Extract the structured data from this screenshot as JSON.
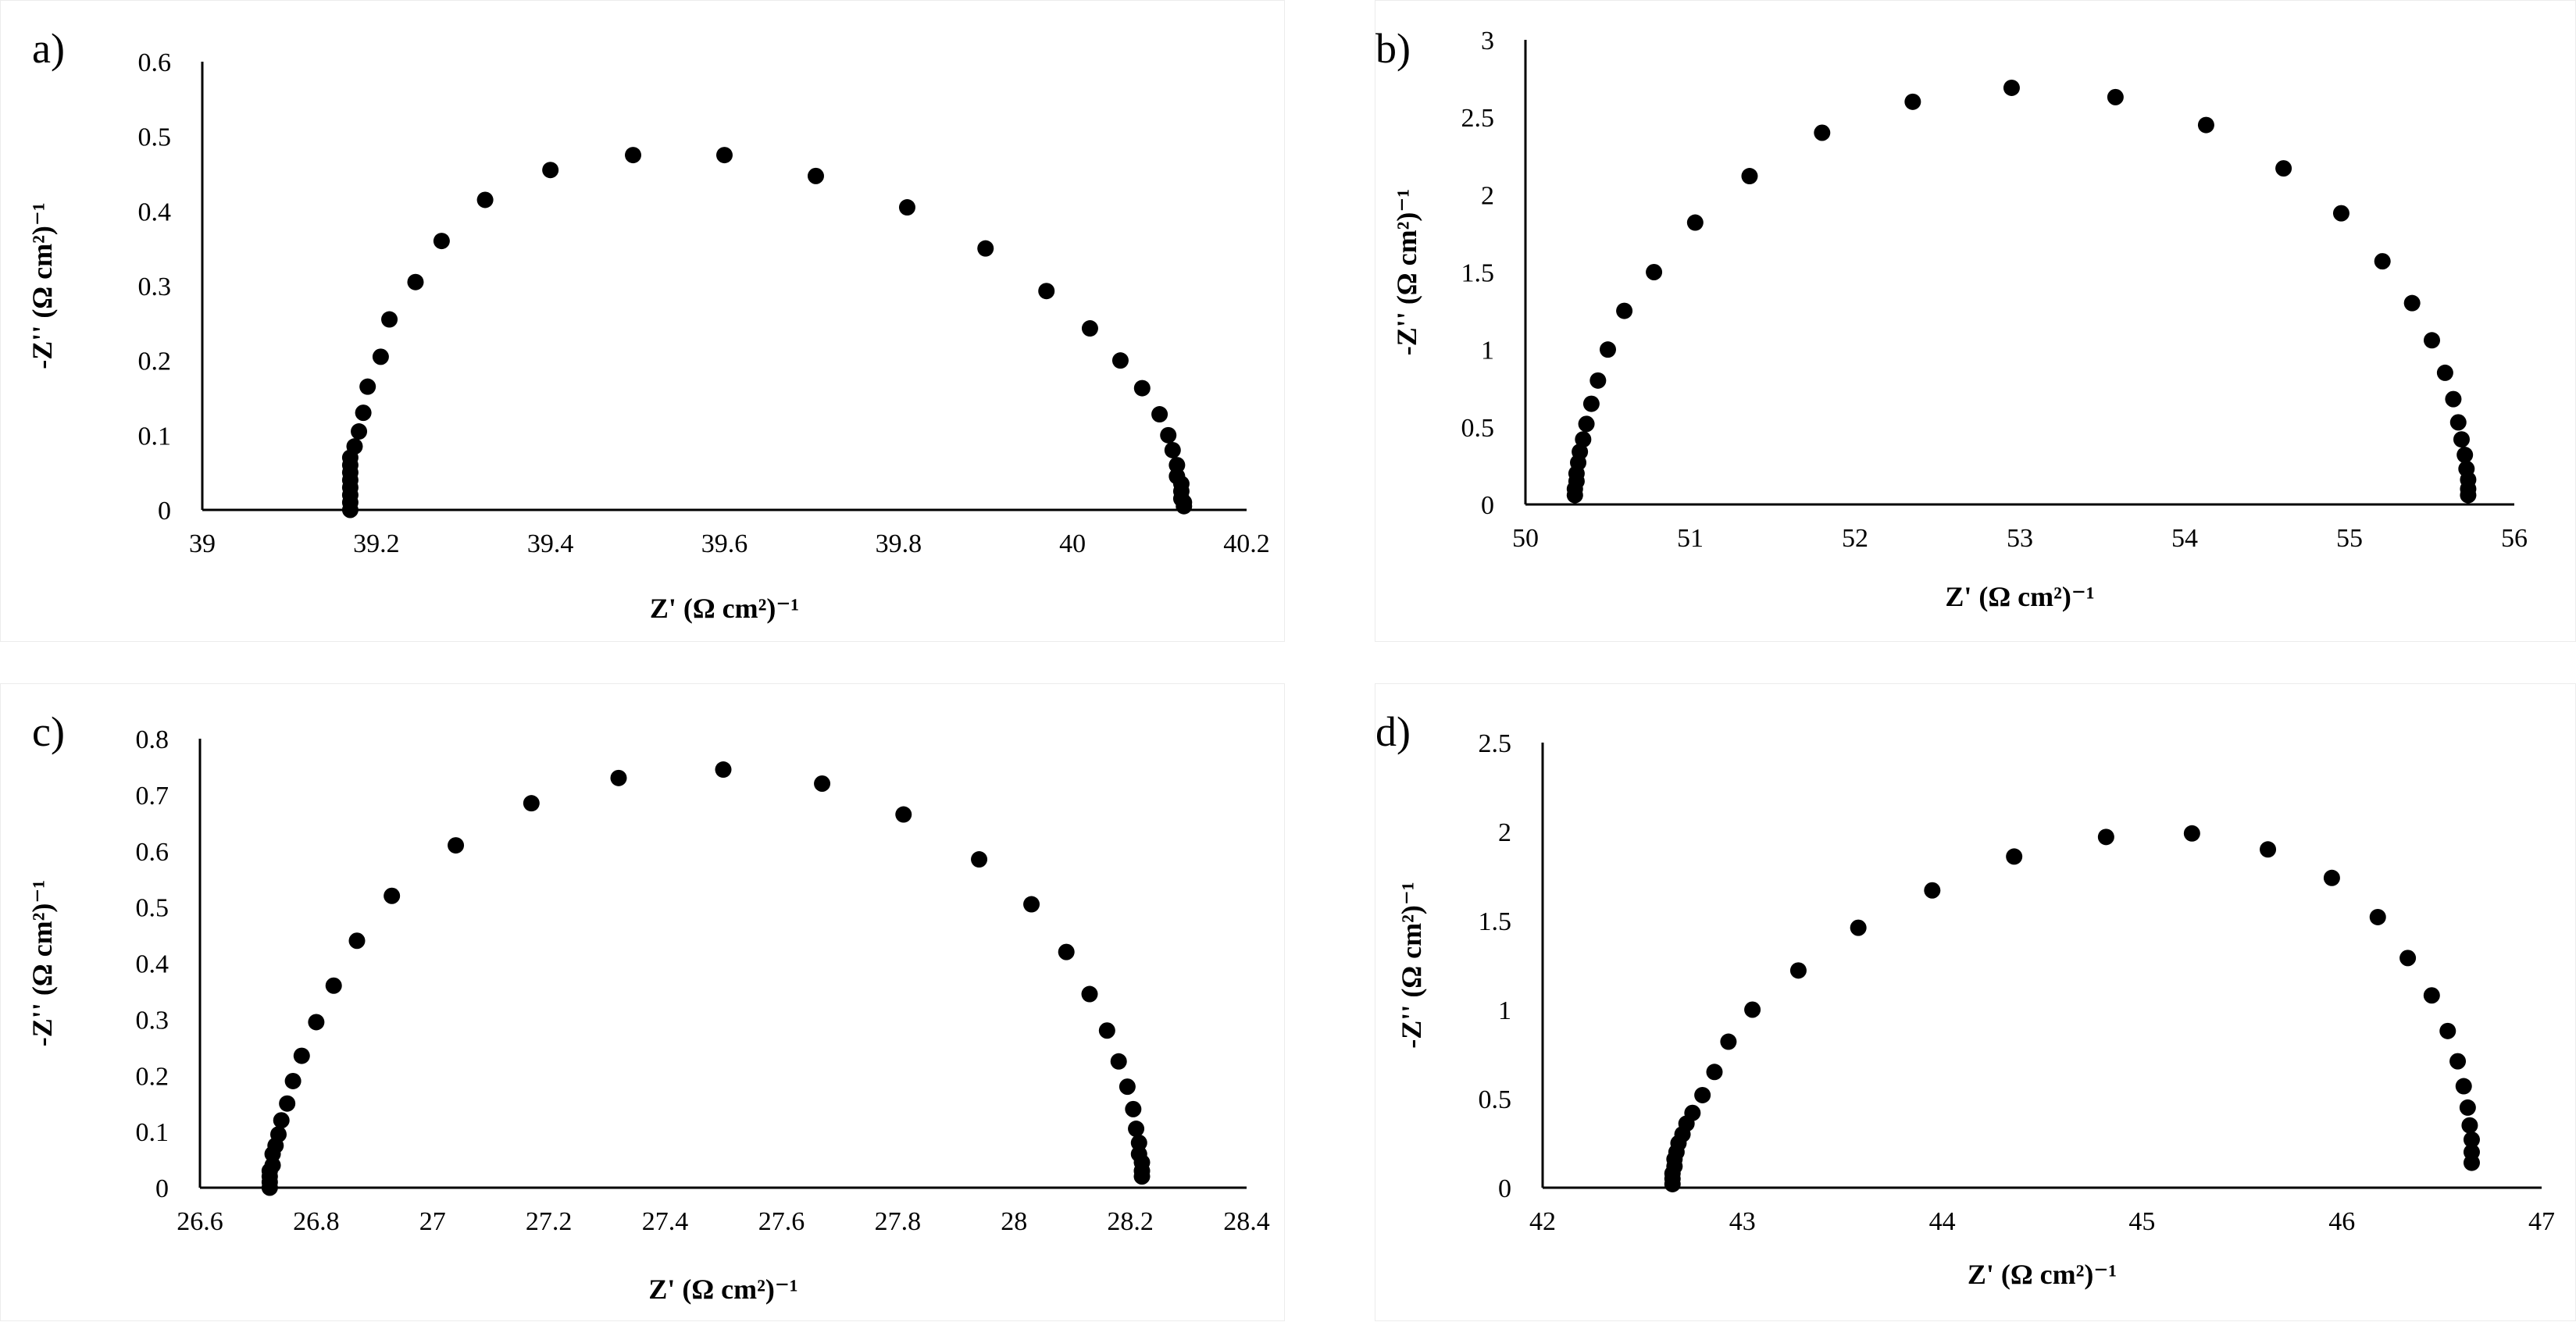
{
  "chart_data": [
    {
      "type": "scatter",
      "panel": "a)",
      "xlabel": "Z' (Ω cm²)⁻¹",
      "ylabel": "-Z'' (Ω cm²)⁻¹",
      "xlim": [
        39,
        40.2
      ],
      "ylim": [
        0,
        0.6
      ],
      "xticks": [
        "39",
        "39.2",
        "39.4",
        "39.6",
        "39.8",
        "40",
        "40.2"
      ],
      "yticks": [
        "0",
        "0.1",
        "0.2",
        "0.3",
        "0.4",
        "0.5",
        "0.6"
      ],
      "grid": false,
      "marker_color": "#000000",
      "series": [
        {
          "x": [
            39.17,
            39.17,
            39.17,
            39.17,
            39.17,
            39.17,
            39.17,
            39.17,
            39.175,
            39.18,
            39.185,
            39.19,
            39.205,
            39.215,
            39.245,
            39.275,
            39.325,
            39.4,
            39.495,
            39.6,
            39.705,
            39.81,
            39.9,
            39.97,
            40.02,
            40.055,
            40.08,
            40.1,
            40.11,
            40.115,
            40.12,
            40.12,
            40.125,
            40.125,
            40.125,
            40.128,
            40.128
          ],
          "y": [
            0.0,
            0.01,
            0.02,
            0.03,
            0.04,
            0.05,
            0.06,
            0.07,
            0.085,
            0.105,
            0.13,
            0.165,
            0.205,
            0.255,
            0.305,
            0.36,
            0.415,
            0.455,
            0.475,
            0.475,
            0.447,
            0.405,
            0.35,
            0.293,
            0.243,
            0.2,
            0.163,
            0.128,
            0.1,
            0.08,
            0.06,
            0.045,
            0.035,
            0.025,
            0.015,
            0.01,
            0.005
          ]
        }
      ]
    },
    {
      "type": "scatter",
      "panel": "b)",
      "xlabel": "Z' (Ω cm²)⁻¹",
      "ylabel": "-Z'' (Ω cm²)⁻¹",
      "xlim": [
        50,
        56
      ],
      "ylim": [
        0,
        3
      ],
      "xticks": [
        "50",
        "51",
        "52",
        "53",
        "54",
        "55",
        "56"
      ],
      "yticks": [
        "0",
        "0.5",
        "1",
        "1.5",
        "2",
        "2.5",
        "3"
      ],
      "grid": false,
      "marker_color": "#000000",
      "series": [
        {
          "x": [
            50.3,
            50.3,
            50.31,
            50.31,
            50.32,
            50.33,
            50.35,
            50.37,
            50.4,
            50.44,
            50.5,
            50.6,
            50.78,
            51.03,
            51.36,
            51.8,
            52.35,
            52.95,
            53.58,
            54.13,
            54.6,
            54.95,
            55.2,
            55.38,
            55.5,
            55.58,
            55.63,
            55.66,
            55.68,
            55.7,
            55.71,
            55.72,
            55.72,
            55.72
          ],
          "y": [
            0.06,
            0.1,
            0.15,
            0.2,
            0.27,
            0.34,
            0.42,
            0.52,
            0.65,
            0.8,
            1.0,
            1.25,
            1.5,
            1.82,
            2.12,
            2.4,
            2.6,
            2.69,
            2.63,
            2.45,
            2.17,
            1.88,
            1.57,
            1.3,
            1.06,
            0.85,
            0.68,
            0.53,
            0.42,
            0.32,
            0.23,
            0.16,
            0.1,
            0.06
          ]
        }
      ]
    },
    {
      "type": "scatter",
      "panel": "c)",
      "xlabel": "Z' (Ω cm²)⁻¹",
      "ylabel": "-Z'' (Ω cm²)⁻¹",
      "xlim": [
        26.6,
        28.4
      ],
      "ylim": [
        0,
        0.8
      ],
      "xticks": [
        "26.6",
        "26.8",
        "27",
        "27.2",
        "27.4",
        "27.6",
        "27.8",
        "28",
        "28.2",
        "28.4"
      ],
      "yticks": [
        "0",
        "0.1",
        "0.2",
        "0.3",
        "0.4",
        "0.5",
        "0.6",
        "0.7",
        "0.8"
      ],
      "grid": false,
      "marker_color": "#000000",
      "series": [
        {
          "x": [
            26.72,
            26.72,
            26.72,
            26.72,
            26.725,
            26.725,
            26.73,
            26.735,
            26.74,
            26.75,
            26.76,
            26.775,
            26.8,
            26.83,
            26.87,
            26.93,
            27.04,
            27.17,
            27.32,
            27.5,
            27.67,
            27.81,
            27.94,
            28.03,
            28.09,
            28.13,
            28.16,
            28.18,
            28.195,
            28.205,
            28.21,
            28.215,
            28.215,
            28.22,
            28.22,
            28.22
          ],
          "y": [
            0.0,
            0.01,
            0.02,
            0.03,
            0.04,
            0.06,
            0.075,
            0.095,
            0.12,
            0.15,
            0.19,
            0.235,
            0.295,
            0.36,
            0.44,
            0.52,
            0.61,
            0.685,
            0.73,
            0.745,
            0.72,
            0.665,
            0.585,
            0.505,
            0.42,
            0.345,
            0.28,
            0.225,
            0.18,
            0.14,
            0.105,
            0.08,
            0.06,
            0.045,
            0.03,
            0.02
          ]
        }
      ]
    },
    {
      "type": "scatter",
      "panel": "d)",
      "xlabel": "Z' (Ω cm²)⁻¹",
      "ylabel": "-Z'' (Ω cm²)⁻¹",
      "xlim": [
        42,
        47
      ],
      "ylim": [
        0,
        2.5
      ],
      "xticks": [
        "42",
        "43",
        "44",
        "45",
        "46",
        "47"
      ],
      "yticks": [
        "0",
        "0.5",
        "1",
        "1.5",
        "2",
        "2.5"
      ],
      "grid": false,
      "marker_color": "#000000",
      "series": [
        {
          "x": [
            42.65,
            42.65,
            42.65,
            42.66,
            42.66,
            42.67,
            42.68,
            42.7,
            42.72,
            42.75,
            42.8,
            42.86,
            42.93,
            43.05,
            43.28,
            43.58,
            43.95,
            44.36,
            44.82,
            45.25,
            45.63,
            45.95,
            46.18,
            46.33,
            46.45,
            46.53,
            46.58,
            46.61,
            46.63,
            46.64,
            46.65,
            46.65,
            46.65
          ],
          "y": [
            0.02,
            0.05,
            0.08,
            0.12,
            0.16,
            0.2,
            0.25,
            0.3,
            0.36,
            0.42,
            0.52,
            0.65,
            0.82,
            1.0,
            1.22,
            1.46,
            1.67,
            1.86,
            1.97,
            1.99,
            1.9,
            1.74,
            1.52,
            1.29,
            1.08,
            0.88,
            0.71,
            0.57,
            0.45,
            0.35,
            0.27,
            0.2,
            0.14
          ]
        }
      ]
    }
  ]
}
